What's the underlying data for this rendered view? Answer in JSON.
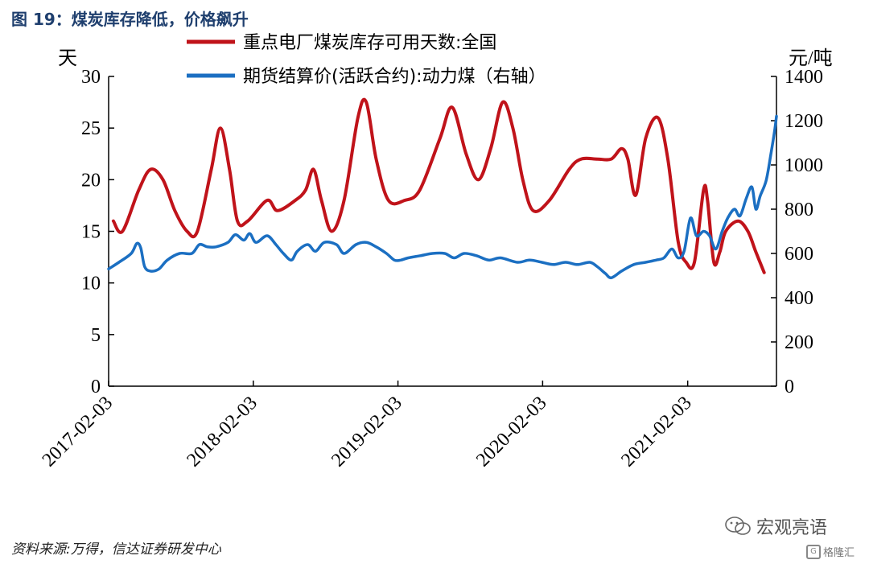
{
  "figure": {
    "title": "图 19：煤炭库存降低，价格飙升",
    "source": "资料来源:万得，信达证券研发中心",
    "watermark": "宏观亮语",
    "brand": "格隆汇"
  },
  "chart_data": {
    "type": "line",
    "x_dates": [
      "2017-02-03",
      "2018-02-03",
      "2019-02-03",
      "2020-02-03",
      "2021-02-03"
    ],
    "xlim": [
      "2017-02-03",
      "2021-09-15"
    ],
    "left_axis": {
      "label": "天",
      "ylim": [
        0,
        30
      ],
      "ticks": [
        0,
        5,
        10,
        15,
        20,
        25,
        30
      ]
    },
    "right_axis": {
      "label": "元/吨",
      "ylim": [
        0,
        1400
      ],
      "ticks": [
        0,
        200,
        400,
        600,
        800,
        1000,
        1200,
        1400
      ]
    },
    "legend_position": "top-center",
    "series": [
      {
        "name": "重点电厂煤炭库存可用天数:全国",
        "axis": "left",
        "color": "#c0131a",
        "points": [
          [
            "2017-02-15",
            16.0
          ],
          [
            "2017-03-10",
            15.0
          ],
          [
            "2017-04-20",
            19.0
          ],
          [
            "2017-05-20",
            21.0
          ],
          [
            "2017-06-20",
            20.0
          ],
          [
            "2017-07-20",
            17.0
          ],
          [
            "2017-08-20",
            15.0
          ],
          [
            "2017-09-15",
            15.0
          ],
          [
            "2017-10-20",
            21.0
          ],
          [
            "2017-11-12",
            25.0
          ],
          [
            "2017-12-05",
            21.0
          ],
          [
            "2017-12-25",
            16.0
          ],
          [
            "2018-01-20",
            16.0
          ],
          [
            "2018-03-10",
            18.0
          ],
          [
            "2018-04-05",
            17.0
          ],
          [
            "2018-05-20",
            18.0
          ],
          [
            "2018-06-15",
            19.0
          ],
          [
            "2018-07-05",
            21.0
          ],
          [
            "2018-07-25",
            18.0
          ],
          [
            "2018-08-20",
            15.0
          ],
          [
            "2018-09-20",
            18.0
          ],
          [
            "2018-10-25",
            26.0
          ],
          [
            "2018-11-15",
            27.5
          ],
          [
            "2018-12-10",
            22.0
          ],
          [
            "2019-01-10",
            18.0
          ],
          [
            "2019-02-20",
            18.0
          ],
          [
            "2019-03-30",
            19.0
          ],
          [
            "2019-05-20",
            24.0
          ],
          [
            "2019-06-20",
            27.0
          ],
          [
            "2019-07-25",
            22.5
          ],
          [
            "2019-08-25",
            20.0
          ],
          [
            "2019-09-25",
            23.0
          ],
          [
            "2019-10-25",
            27.5
          ],
          [
            "2019-11-20",
            25.0
          ],
          [
            "2019-12-15",
            20.0
          ],
          [
            "2020-01-10",
            17.0
          ],
          [
            "2020-02-20",
            18.0
          ],
          [
            "2020-04-10",
            21.0
          ],
          [
            "2020-05-10",
            22.0
          ],
          [
            "2020-06-20",
            22.0
          ],
          [
            "2020-07-25",
            22.0
          ],
          [
            "2020-08-20",
            23.0
          ],
          [
            "2020-09-05",
            22.0
          ],
          [
            "2020-09-25",
            18.5
          ],
          [
            "2020-10-20",
            24.0
          ],
          [
            "2020-11-20",
            26.0
          ],
          [
            "2020-12-15",
            22.0
          ],
          [
            "2021-01-10",
            14.0
          ],
          [
            "2021-01-30",
            12.0
          ],
          [
            "2021-02-20",
            12.0
          ],
          [
            "2021-03-15",
            19.0
          ],
          [
            "2021-03-25",
            18.0
          ],
          [
            "2021-04-10",
            12.0
          ],
          [
            "2021-04-25",
            13.0
          ],
          [
            "2021-05-10",
            15.0
          ],
          [
            "2021-06-10",
            16.0
          ],
          [
            "2021-07-05",
            15.0
          ],
          [
            "2021-07-25",
            13.0
          ],
          [
            "2021-08-15",
            11.0
          ]
        ]
      },
      {
        "name": "期货结算价(活跃合约):动力煤（右轴）",
        "axis": "right",
        "color": "#1b6fc2",
        "points": [
          [
            "2017-02-03",
            530
          ],
          [
            "2017-03-01",
            560
          ],
          [
            "2017-04-01",
            600
          ],
          [
            "2017-04-15",
            645
          ],
          [
            "2017-04-25",
            625
          ],
          [
            "2017-05-05",
            540
          ],
          [
            "2017-05-20",
            520
          ],
          [
            "2017-06-10",
            530
          ],
          [
            "2017-07-01",
            570
          ],
          [
            "2017-08-01",
            600
          ],
          [
            "2017-09-01",
            600
          ],
          [
            "2017-09-20",
            640
          ],
          [
            "2017-10-10",
            630
          ],
          [
            "2017-11-01",
            630
          ],
          [
            "2017-12-01",
            650
          ],
          [
            "2017-12-20",
            685
          ],
          [
            "2018-01-10",
            660
          ],
          [
            "2018-01-25",
            690
          ],
          [
            "2018-02-10",
            650
          ],
          [
            "2018-03-10",
            680
          ],
          [
            "2018-04-01",
            640
          ],
          [
            "2018-04-20",
            600
          ],
          [
            "2018-05-10",
            570
          ],
          [
            "2018-05-25",
            610
          ],
          [
            "2018-06-20",
            640
          ],
          [
            "2018-07-10",
            610
          ],
          [
            "2018-08-01",
            650
          ],
          [
            "2018-09-01",
            640
          ],
          [
            "2018-09-20",
            600
          ],
          [
            "2018-10-20",
            640
          ],
          [
            "2018-11-15",
            650
          ],
          [
            "2018-12-10",
            630
          ],
          [
            "2019-01-05",
            600
          ],
          [
            "2019-01-25",
            570
          ],
          [
            "2019-02-10",
            570
          ],
          [
            "2019-03-01",
            580
          ],
          [
            "2019-04-01",
            590
          ],
          [
            "2019-05-01",
            600
          ],
          [
            "2019-06-01",
            600
          ],
          [
            "2019-06-25",
            580
          ],
          [
            "2019-07-20",
            600
          ],
          [
            "2019-08-20",
            590
          ],
          [
            "2019-09-20",
            570
          ],
          [
            "2019-10-20",
            580
          ],
          [
            "2019-12-01",
            560
          ],
          [
            "2020-01-01",
            570
          ],
          [
            "2020-02-01",
            560
          ],
          [
            "2020-03-01",
            550
          ],
          [
            "2020-04-01",
            560
          ],
          [
            "2020-05-01",
            550
          ],
          [
            "2020-06-01",
            560
          ],
          [
            "2020-06-20",
            540
          ],
          [
            "2020-07-10",
            510
          ],
          [
            "2020-07-25",
            490
          ],
          [
            "2020-08-20",
            520
          ],
          [
            "2020-09-20",
            550
          ],
          [
            "2020-10-20",
            560
          ],
          [
            "2020-11-15",
            570
          ],
          [
            "2020-12-05",
            580
          ],
          [
            "2020-12-25",
            620
          ],
          [
            "2021-01-10",
            580
          ],
          [
            "2021-01-25",
            610
          ],
          [
            "2021-02-10",
            760
          ],
          [
            "2021-02-25",
            680
          ],
          [
            "2021-03-15",
            700
          ],
          [
            "2021-03-30",
            680
          ],
          [
            "2021-04-15",
            620
          ],
          [
            "2021-05-01",
            700
          ],
          [
            "2021-05-15",
            760
          ],
          [
            "2021-06-01",
            800
          ],
          [
            "2021-06-15",
            770
          ],
          [
            "2021-07-01",
            850
          ],
          [
            "2021-07-15",
            900
          ],
          [
            "2021-07-25",
            800
          ],
          [
            "2021-08-05",
            860
          ],
          [
            "2021-08-20",
            930
          ],
          [
            "2021-09-01",
            1050
          ],
          [
            "2021-09-10",
            1150
          ],
          [
            "2021-09-15",
            1220
          ]
        ]
      }
    ]
  }
}
